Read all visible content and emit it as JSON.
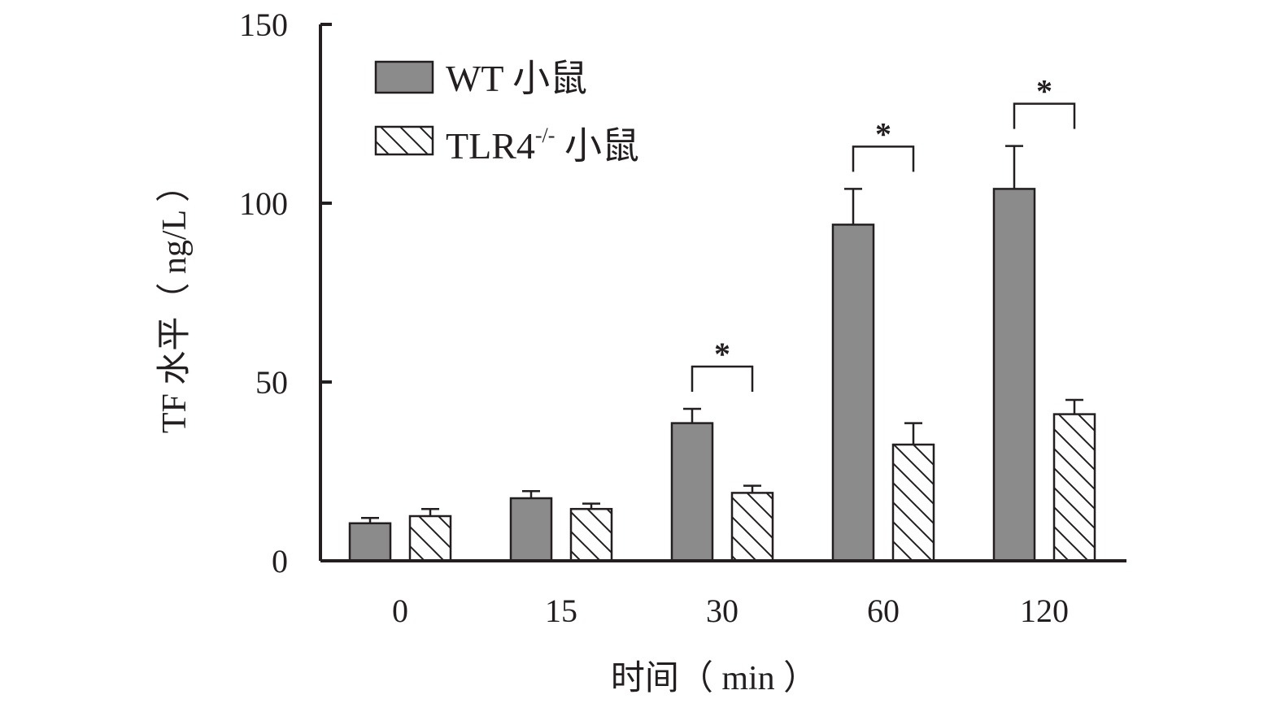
{
  "chart_data": {
    "type": "bar",
    "categories": [
      "0",
      "15",
      "30",
      "60",
      "120"
    ],
    "series": [
      {
        "name": "WT 小鼠",
        "legend_label": "WT 小鼠",
        "values": [
          10.5,
          17.5,
          38.5,
          94,
          104
        ],
        "errors": [
          1.5,
          2,
          4,
          10,
          12
        ],
        "color": "#8c8b8b",
        "fill": "solid"
      },
      {
        "name": "TLR4-/- 小鼠",
        "legend_label_main": "TLR4",
        "legend_label_sup": "-/-",
        "legend_label_suffix": " 小鼠",
        "values": [
          12.5,
          14.5,
          19,
          32.5,
          41
        ],
        "errors": [
          2,
          1.5,
          2,
          6,
          4
        ],
        "color": "#ffffff",
        "fill": "hatch"
      }
    ],
    "significance": [
      {
        "category": "30",
        "label": "*"
      },
      {
        "category": "60",
        "label": "*"
      },
      {
        "category": "120",
        "label": "*"
      }
    ],
    "xlabel": "时间（ min ）",
    "ylabel": "TF 水平（ ng/L ）",
    "ylim": [
      0,
      150
    ],
    "yticks": [
      "0",
      "50",
      "100",
      "150"
    ],
    "grid": false,
    "legend_position": "top-left"
  }
}
